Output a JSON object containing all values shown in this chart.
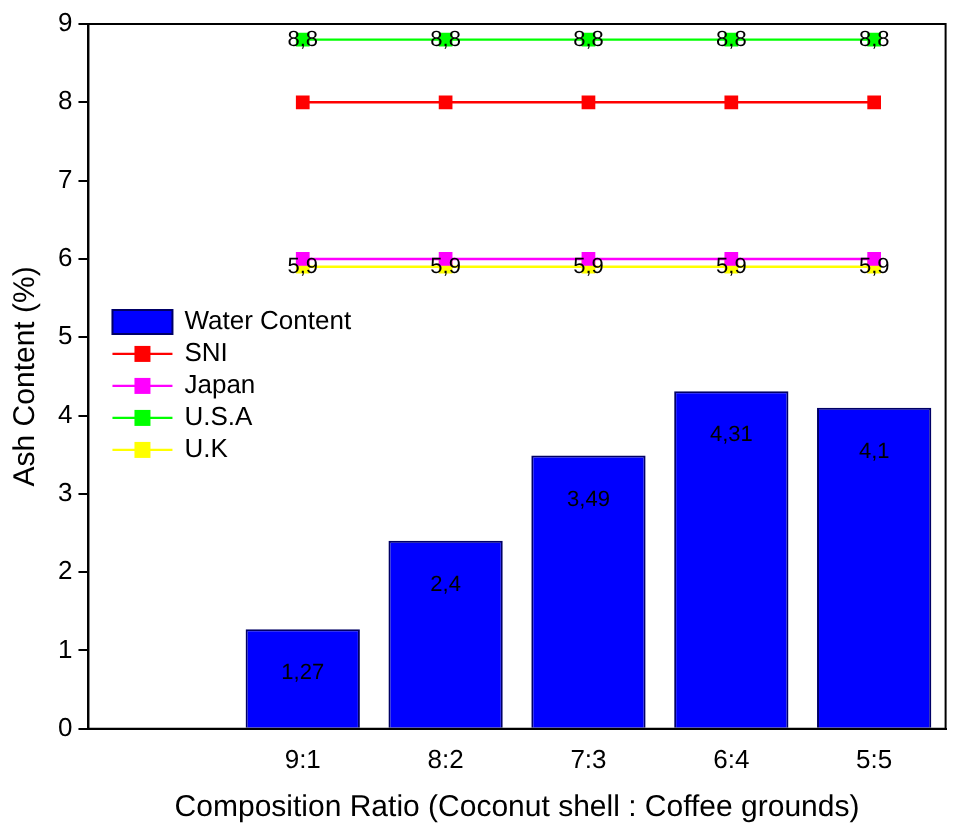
{
  "chart_data": {
    "type": "bar",
    "xlabel": "Composition Ratio (Coconut shell : Coffee grounds)",
    "ylabel": "Ash Content (%)",
    "categories": [
      null,
      "9:1",
      "8:2",
      "7:3",
      "6:4",
      "5:5"
    ],
    "series": [
      {
        "name": "Water Content",
        "color": "#0000ff",
        "values": [
          null,
          1.27,
          2.4,
          3.49,
          4.31,
          4.1
        ],
        "value_labels": [
          null,
          "1,27",
          "2,4",
          "3,49",
          "4,31",
          "4,1"
        ]
      },
      {
        "name": "SNI",
        "type": "line",
        "color": "#ff0000",
        "values": [
          null,
          8,
          8,
          8,
          8,
          8
        ]
      },
      {
        "name": "Japan",
        "type": "line",
        "color": "#ff00ff",
        "values": [
          null,
          6,
          6,
          6,
          6,
          6
        ]
      },
      {
        "name": "U.S.A",
        "type": "line",
        "color": "#00ff00",
        "values": [
          null,
          8.8,
          8.8,
          8.8,
          8.8,
          8.8
        ],
        "value_labels": [
          null,
          "8,8",
          "8,8",
          "8,8",
          "8,8",
          "8,8"
        ]
      },
      {
        "name": "U.K",
        "type": "line",
        "color": "#ffff00",
        "values": [
          null,
          5.9,
          5.9,
          5.9,
          5.9,
          5.9
        ],
        "value_labels": [
          null,
          "5,9",
          "5,9",
          "5,9",
          "5,9",
          "5,9"
        ]
      }
    ],
    "ylim": [
      0,
      9
    ],
    "yticks": [
      0,
      1,
      2,
      3,
      4,
      5,
      6,
      7,
      8,
      9
    ],
    "grid": false,
    "legend": "left",
    "marker": "square",
    "line_style": "solid"
  }
}
